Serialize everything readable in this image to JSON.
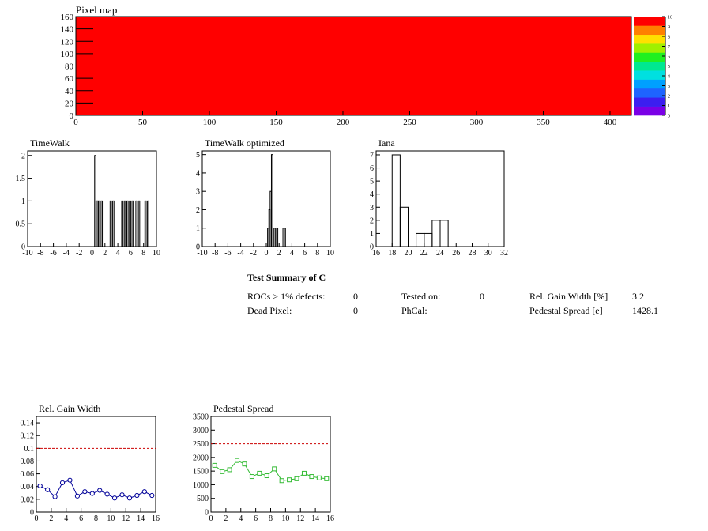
{
  "pixel_map": {
    "title": "Pixel map",
    "fill_color": "#ff0000",
    "x_ticks": [
      0,
      50,
      100,
      150,
      200,
      250,
      300,
      350,
      400
    ],
    "y_ticks": [
      0,
      20,
      40,
      60,
      80,
      100,
      120,
      140,
      160
    ],
    "xlim": [
      0,
      416
    ],
    "ylim": [
      0,
      160
    ],
    "palette_labels": [
      "0",
      "1",
      "2",
      "3",
      "4",
      "5",
      "6",
      "7",
      "8",
      "9",
      "10"
    ],
    "palette_colors": [
      "#7a00e6",
      "#3c1ef0",
      "#1e64ff",
      "#00a0ff",
      "#00e0e0",
      "#00e890",
      "#20f020",
      "#a0f000",
      "#ffe000",
      "#ff8000",
      "#ff0000"
    ]
  },
  "chart_data": [
    {
      "type": "bar",
      "title": "TimeWalk",
      "xlim": [
        -10,
        10
      ],
      "ylim": [
        0,
        2.1
      ],
      "x_ticks": [
        "-10",
        "-8",
        "-6",
        "-4",
        "-2",
        "0",
        "2",
        "4",
        "6",
        "8",
        "10"
      ],
      "y_ticks": [
        "0",
        "0.5",
        "1",
        "1.5",
        "2"
      ],
      "bin_width": 0.2,
      "bins": [
        [
          0.4,
          2
        ],
        [
          0.6,
          1
        ],
        [
          0.8,
          1
        ],
        [
          1.0,
          1
        ],
        [
          1.4,
          1
        ],
        [
          2.8,
          1
        ],
        [
          3.2,
          1
        ],
        [
          4.6,
          1
        ],
        [
          5.0,
          1
        ],
        [
          5.4,
          1
        ],
        [
          5.8,
          1
        ],
        [
          6.2,
          1
        ],
        [
          6.8,
          1
        ],
        [
          7.2,
          1
        ],
        [
          8.2,
          1
        ],
        [
          8.6,
          1
        ]
      ]
    },
    {
      "type": "bar",
      "title": "TimeWalk optimized",
      "xlim": [
        -10,
        10
      ],
      "ylim": [
        0,
        5.2
      ],
      "x_ticks": [
        "-10",
        "-8",
        "-6",
        "-4",
        "-2",
        "0",
        "2",
        "4",
        "6",
        "8",
        "10"
      ],
      "y_ticks": [
        "0",
        "1",
        "2",
        "3",
        "4",
        "5"
      ],
      "bin_width": 0.2,
      "bins": [
        [
          0.2,
          1
        ],
        [
          0.4,
          2
        ],
        [
          0.6,
          3
        ],
        [
          0.8,
          5
        ],
        [
          1.2,
          1
        ],
        [
          1.6,
          1
        ],
        [
          2.6,
          1
        ],
        [
          2.8,
          1
        ]
      ]
    },
    {
      "type": "bar",
      "title": "Iana",
      "xlim": [
        16,
        32
      ],
      "ylim": [
        0,
        7.3
      ],
      "x_ticks": [
        "16",
        "18",
        "20",
        "22",
        "24",
        "26",
        "28",
        "30",
        "32"
      ],
      "y_ticks": [
        "0",
        "1",
        "2",
        "3",
        "4",
        "5",
        "6",
        "7"
      ],
      "bin_width": 1,
      "bins": [
        [
          18,
          7
        ],
        [
          19,
          3
        ],
        [
          21,
          1
        ],
        [
          22,
          1
        ],
        [
          23,
          2
        ],
        [
          24,
          2
        ]
      ]
    },
    {
      "type": "line",
      "title": "Rel. Gain Width",
      "xlim": [
        0,
        16
      ],
      "ylim": [
        0,
        0.15
      ],
      "x_ticks": [
        "0",
        "2",
        "4",
        "6",
        "8",
        "10",
        "12",
        "14",
        "16"
      ],
      "y_ticks": [
        "0",
        "0.02",
        "0.04",
        "0.06",
        "0.08",
        "0.1",
        "0.12",
        "0.14"
      ],
      "reference_line": 0.1,
      "line_color": "#000099",
      "marker": "circle",
      "x": [
        0.5,
        1.5,
        2.5,
        3.5,
        4.5,
        5.5,
        6.5,
        7.5,
        8.5,
        9.5,
        10.5,
        11.5,
        12.5,
        13.5,
        14.5,
        15.5
      ],
      "y": [
        0.041,
        0.035,
        0.024,
        0.046,
        0.05,
        0.025,
        0.032,
        0.029,
        0.034,
        0.028,
        0.022,
        0.027,
        0.022,
        0.026,
        0.032,
        0.026
      ]
    },
    {
      "type": "line",
      "title": "Pedestal Spread",
      "xlim": [
        0,
        16
      ],
      "ylim": [
        0,
        3500
      ],
      "x_ticks": [
        "0",
        "2",
        "4",
        "6",
        "8",
        "10",
        "12",
        "14",
        "16"
      ],
      "y_ticks": [
        "0",
        "500",
        "1000",
        "1500",
        "2000",
        "2500",
        "3000",
        "3500"
      ],
      "reference_line": 2500,
      "line_color": "#33bb33",
      "marker": "square",
      "x": [
        0.5,
        1.5,
        2.5,
        3.5,
        4.5,
        5.5,
        6.5,
        7.5,
        8.5,
        9.5,
        10.5,
        11.5,
        12.5,
        13.5,
        14.5,
        15.5
      ],
      "y": [
        1710,
        1480,
        1550,
        1890,
        1760,
        1300,
        1420,
        1330,
        1580,
        1150,
        1180,
        1220,
        1420,
        1300,
        1250,
        1220
      ]
    }
  ],
  "summary": {
    "title": "Test Summary of C",
    "rocs_label": "ROCs > 1% defects:",
    "rocs_value": "0",
    "dead_label": "Dead Pixel:",
    "dead_value": "0",
    "tested_label": "Tested on:",
    "tested_value": "0",
    "phcal_label": "PhCal:",
    "gain_label": "Rel. Gain Width [%]",
    "gain_value": "3.2",
    "ped_label": "Pedestal Spread [e]",
    "ped_value": "1428.1"
  }
}
